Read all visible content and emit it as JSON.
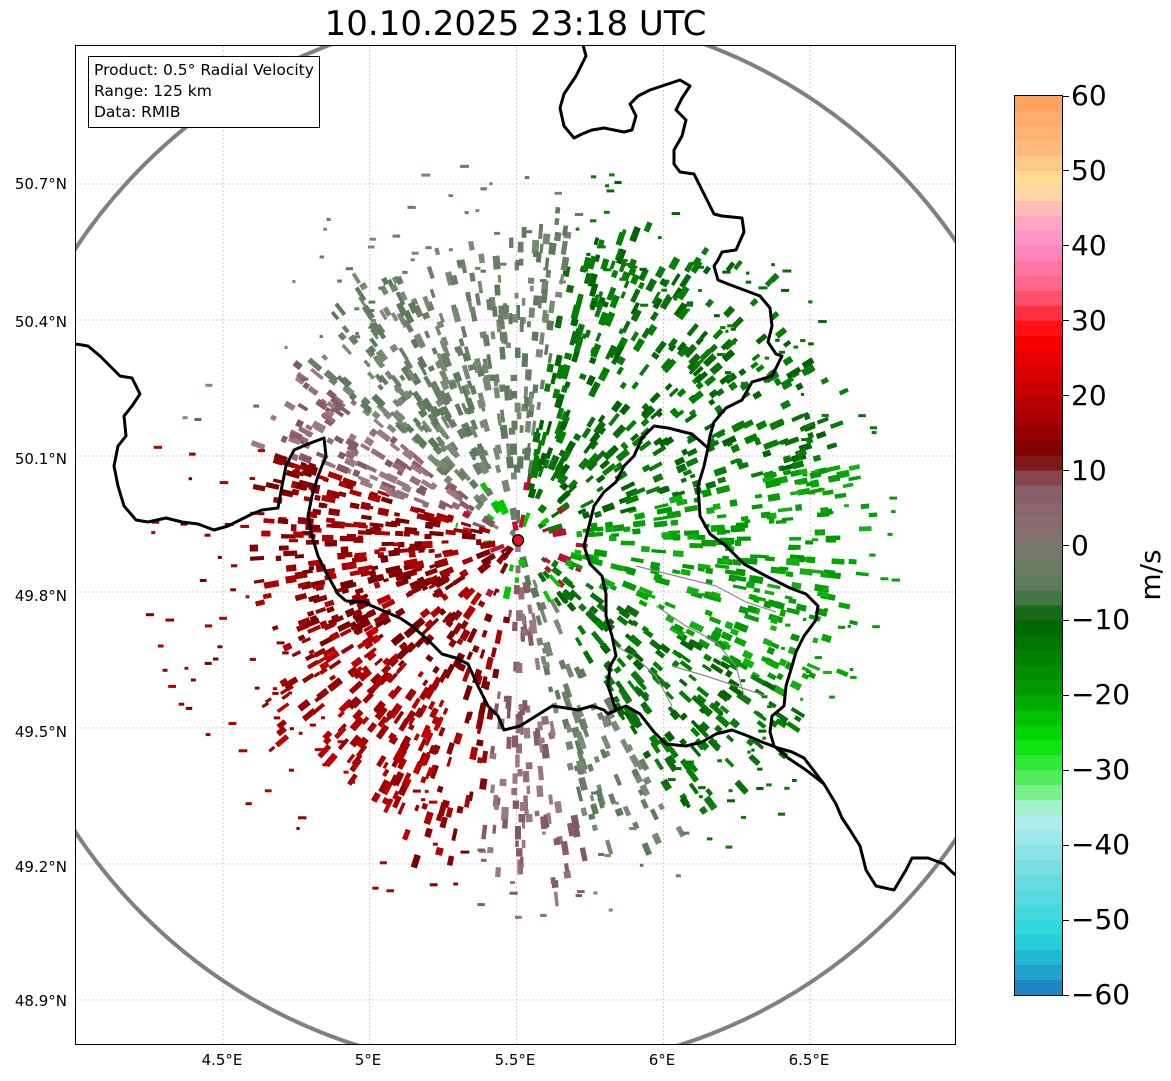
{
  "title": "10.10.2025 23:18 UTC",
  "info": {
    "product": "Product: 0.5° Radial Velocity",
    "range": "Range: 125 km",
    "source": "Data: RMIB"
  },
  "map": {
    "lat_labels": [
      "50.7°N",
      "50.4°N",
      "50.1°N",
      "49.8°N",
      "49.5°N",
      "49.2°N",
      "48.9°N"
    ],
    "lon_labels": [
      "4.5°E",
      "5°E",
      "5.5°E",
      "6°E",
      "6.5°E"
    ],
    "radar_site": {
      "lon": 5.505,
      "lat": 49.914
    },
    "range_ring_color": "#808080",
    "border_color": "#000000",
    "radar_marker_color": "#e8141a"
  },
  "colorbar": {
    "unit": "m/s",
    "min": -60,
    "max": 60,
    "tick_labels": [
      "60",
      "50",
      "40",
      "30",
      "20",
      "10",
      "0",
      "−10",
      "−20",
      "−30",
      "−40",
      "−50",
      "−60"
    ],
    "tick_values": [
      60,
      50,
      40,
      30,
      20,
      10,
      0,
      -10,
      -20,
      -30,
      -40,
      -50,
      -60
    ],
    "colors": {
      "orange": "#ff9e5e",
      "yellow": "#ffe49a",
      "pink": "#ff8cc8",
      "red": "#ff0000",
      "darkred": "#7a0000",
      "mauve": "#8a5a66",
      "gray": "#6b7d66",
      "darkgreen": "#006400",
      "green": "#00e000",
      "lightgreen": "#90f0a8",
      "lightcyan": "#b8eef0",
      "cyan": "#28d8dc",
      "blue": "#1e78c0"
    }
  }
}
